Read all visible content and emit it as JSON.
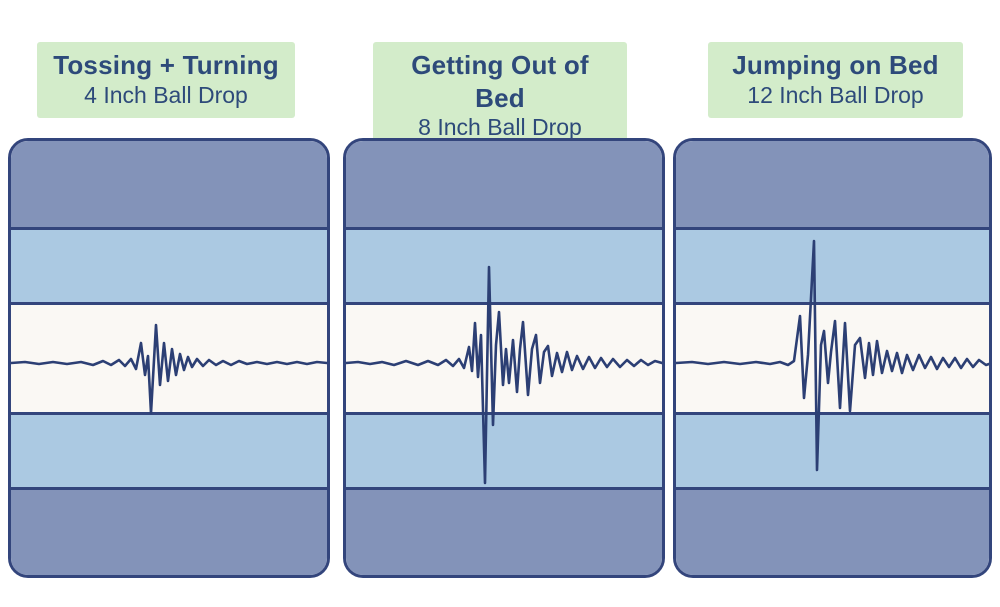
{
  "colors": {
    "background": "#ffffff",
    "label-bg": "#d3ecca",
    "heading-text": "#2d4a7a",
    "mattress-dark-band": "#8393b9",
    "mattress-light-band": "#abc9e2",
    "mattress-white-band": "#faf8f4",
    "outline-navy": "#33457c",
    "waveform-line": "#2c3f74"
  },
  "panels": [
    {
      "title": "Tossing + Turning",
      "subtitle": "4 Inch Ball Drop",
      "waveform": [
        [
          0,
          0
        ],
        [
          14,
          1
        ],
        [
          28,
          -1
        ],
        [
          42,
          1
        ],
        [
          56,
          -1
        ],
        [
          70,
          1
        ],
        [
          82,
          -2
        ],
        [
          92,
          2
        ],
        [
          100,
          -2
        ],
        [
          108,
          3
        ],
        [
          114,
          -3
        ],
        [
          120,
          4
        ],
        [
          125,
          -6
        ],
        [
          130,
          20
        ],
        [
          134,
          -12
        ],
        [
          137,
          7
        ],
        [
          140,
          -50
        ],
        [
          145,
          38
        ],
        [
          149,
          -22
        ],
        [
          153,
          20
        ],
        [
          157,
          -18
        ],
        [
          161,
          14
        ],
        [
          165,
          -12
        ],
        [
          169,
          9
        ],
        [
          173,
          -7
        ],
        [
          177,
          6
        ],
        [
          181,
          -4
        ],
        [
          186,
          4
        ],
        [
          192,
          -3
        ],
        [
          198,
          3
        ],
        [
          205,
          -2
        ],
        [
          212,
          2
        ],
        [
          220,
          -2
        ],
        [
          228,
          2
        ],
        [
          236,
          -1
        ],
        [
          246,
          1
        ],
        [
          256,
          -1
        ],
        [
          266,
          1
        ],
        [
          276,
          -1
        ],
        [
          286,
          1
        ],
        [
          296,
          -1
        ],
        [
          306,
          1
        ],
        [
          316,
          0
        ]
      ]
    },
    {
      "title": "Getting Out of Bed",
      "subtitle": "8 Inch Ball Drop",
      "waveform": [
        [
          0,
          0
        ],
        [
          12,
          1
        ],
        [
          24,
          -1
        ],
        [
          36,
          1
        ],
        [
          48,
          -2
        ],
        [
          60,
          2
        ],
        [
          72,
          -2
        ],
        [
          82,
          2
        ],
        [
          92,
          -2
        ],
        [
          100,
          3
        ],
        [
          107,
          -3
        ],
        [
          113,
          4
        ],
        [
          118,
          -5
        ],
        [
          123,
          16
        ],
        [
          126,
          -8
        ],
        [
          129,
          40
        ],
        [
          132,
          -14
        ],
        [
          135,
          28
        ],
        [
          139,
          -120
        ],
        [
          143,
          96
        ],
        [
          147,
          -62
        ],
        [
          150,
          18
        ],
        [
          153,
          51
        ],
        [
          157,
          -22
        ],
        [
          160,
          14
        ],
        [
          163,
          -20
        ],
        [
          167,
          23
        ],
        [
          171,
          -29
        ],
        [
          174,
          14
        ],
        [
          177,
          41
        ],
        [
          182,
          -32
        ],
        [
          186,
          14
        ],
        [
          190,
          28
        ],
        [
          194,
          -20
        ],
        [
          198,
          11
        ],
        [
          202,
          17
        ],
        [
          206,
          -13
        ],
        [
          211,
          10
        ],
        [
          216,
          -9
        ],
        [
          221,
          11
        ],
        [
          226,
          -7
        ],
        [
          231,
          7
        ],
        [
          237,
          -6
        ],
        [
          243,
          6
        ],
        [
          249,
          -5
        ],
        [
          255,
          5
        ],
        [
          261,
          -4
        ],
        [
          267,
          4
        ],
        [
          274,
          -4
        ],
        [
          281,
          3
        ],
        [
          288,
          -3
        ],
        [
          295,
          3
        ],
        [
          302,
          -2
        ],
        [
          309,
          2
        ],
        [
          316,
          0
        ]
      ]
    },
    {
      "title": "Jumping on Bed",
      "subtitle": "12 Inch Ball Drop",
      "waveform": [
        [
          0,
          0
        ],
        [
          16,
          1
        ],
        [
          32,
          -1
        ],
        [
          48,
          1
        ],
        [
          64,
          -1
        ],
        [
          80,
          1
        ],
        [
          94,
          -1
        ],
        [
          104,
          1
        ],
        [
          112,
          -2
        ],
        [
          118,
          2
        ],
        [
          124,
          47
        ],
        [
          128,
          -35
        ],
        [
          132,
          8
        ],
        [
          138,
          122
        ],
        [
          141,
          -107
        ],
        [
          145,
          18
        ],
        [
          148,
          32
        ],
        [
          152,
          -20
        ],
        [
          155,
          11
        ],
        [
          159,
          42
        ],
        [
          164,
          -45
        ],
        [
          169,
          40
        ],
        [
          174,
          -48
        ],
        [
          179,
          18
        ],
        [
          184,
          25
        ],
        [
          189,
          -15
        ],
        [
          193,
          20
        ],
        [
          197,
          -12
        ],
        [
          201,
          22
        ],
        [
          206,
          -10
        ],
        [
          211,
          12
        ],
        [
          216,
          -8
        ],
        [
          221,
          10
        ],
        [
          226,
          -10
        ],
        [
          231,
          8
        ],
        [
          237,
          -7
        ],
        [
          243,
          8
        ],
        [
          249,
          -5
        ],
        [
          255,
          6
        ],
        [
          261,
          -6
        ],
        [
          267,
          5
        ],
        [
          273,
          -4
        ],
        [
          279,
          5
        ],
        [
          285,
          -5
        ],
        [
          291,
          4
        ],
        [
          297,
          -4
        ],
        [
          303,
          3
        ],
        [
          310,
          -2
        ],
        [
          316,
          0
        ]
      ]
    }
  ]
}
